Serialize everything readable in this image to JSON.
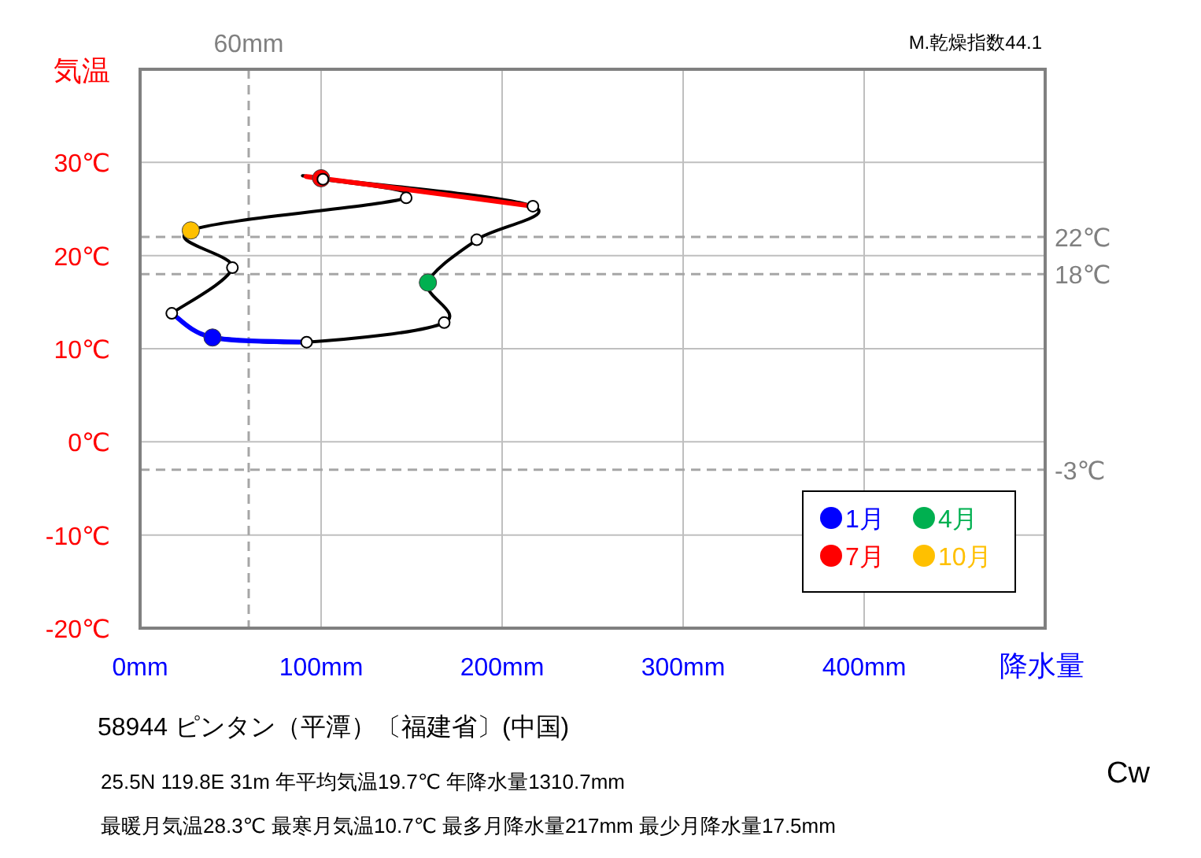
{
  "chart_data": {
    "type": "line",
    "xlabel": "降水量",
    "ylabel": "気温",
    "xlim": [
      0,
      500
    ],
    "ylim": [
      -20,
      40
    ],
    "xticks": [
      {
        "value": 0,
        "label": "0mm"
      },
      {
        "value": 100,
        "label": "100mm"
      },
      {
        "value": 200,
        "label": "200mm"
      },
      {
        "value": 300,
        "label": "300mm"
      },
      {
        "value": 400,
        "label": "400mm"
      }
    ],
    "yticks": [
      {
        "value": -20,
        "label": "-20℃"
      },
      {
        "value": -10,
        "label": "-10℃"
      },
      {
        "value": 0,
        "label": "0℃"
      },
      {
        "value": 10,
        "label": "10℃"
      },
      {
        "value": 20,
        "label": "20℃"
      },
      {
        "value": 30,
        "label": "30℃"
      }
    ],
    "grid": true,
    "marker": "circle",
    "legend": "bottom right",
    "series": [
      {
        "color": "#000000",
        "x": [
          40,
          92,
          168,
          159,
          186,
          217,
          100,
          101,
          147,
          28,
          51,
          17.5
        ],
        "values": [
          11.2,
          10.7,
          12.8,
          17.1,
          21.7,
          25.3,
          28.3,
          28.2,
          26.2,
          22.7,
          18.7,
          13.8
        ]
      },
      {
        "color": "#0000ff",
        "x": [
          17.5,
          40,
          92
        ],
        "values": [
          13.8,
          11.2,
          10.7
        ],
        "marker": "none"
      },
      {
        "color": "#ff0000",
        "x": [
          217,
          100,
          101
        ],
        "values": [
          25.3,
          28.3,
          28.2
        ],
        "marker": "none"
      },
      {
        "type": "scatter",
        "name": "1月",
        "color": "#0000ff",
        "x": [
          40
        ],
        "values": [
          11.2
        ]
      },
      {
        "type": "scatter",
        "name": "4月",
        "color": "#00b050",
        "x": [
          159
        ],
        "values": [
          17.1
        ]
      },
      {
        "type": "scatter",
        "name": "7月",
        "color": "#ff0000",
        "x": [
          100
        ],
        "values": [
          28.3
        ]
      },
      {
        "type": "scatter",
        "name": "10月",
        "color": "#ffc000",
        "x": [
          28
        ],
        "values": [
          22.7
        ]
      }
    ],
    "ref_lines": [
      {
        "axis": "y",
        "value": 22,
        "label": "22℃",
        "line_style": "dashed"
      },
      {
        "axis": "y",
        "value": 18,
        "label": "18℃",
        "line_style": "dashed"
      },
      {
        "axis": "y",
        "value": -3,
        "label": "-3℃",
        "line_style": "dashed"
      },
      {
        "axis": "x",
        "value": 60,
        "label": "60mm",
        "line_style": "dashed"
      }
    ],
    "annotations": [
      "M.乾燥指数44.1",
      "58944  ピンタン（平潭）〔福建省〕(中国)",
      "25.5N  119.8E 31m  年平均気温19.7℃ 年降水量1310.7mm",
      "最暖月気温28.3℃ 最寒月気温10.7℃ 最多月降水量217mm 最少月降水量17.5mm",
      "Cw"
    ]
  }
}
